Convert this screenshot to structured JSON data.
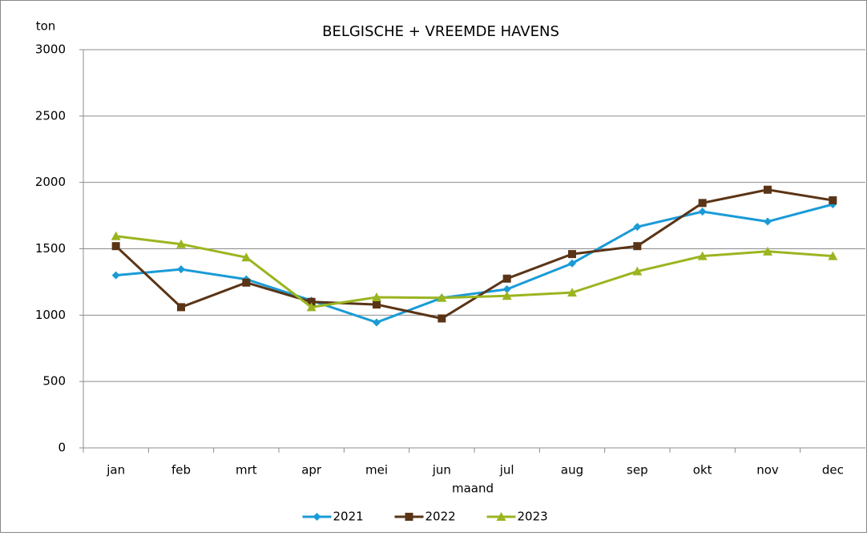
{
  "chart_data": {
    "type": "line",
    "title": "BELGISCHE + VREEMDE HAVENS",
    "ylabel": "ton",
    "xlabel": "maand",
    "categories": [
      "jan",
      "feb",
      "mrt",
      "apr",
      "mei",
      "jun",
      "jul",
      "aug",
      "sep",
      "okt",
      "nov",
      "dec"
    ],
    "series": [
      {
        "name": "2021",
        "color": "#1a9bd7",
        "marker": "diamond",
        "values": [
          1300,
          1345,
          1270,
          1110,
          945,
          1130,
          1195,
          1390,
          1665,
          1780,
          1705,
          1835
        ]
      },
      {
        "name": "2022",
        "color": "#5a3416",
        "marker": "square",
        "values": [
          1520,
          1060,
          1245,
          1100,
          1080,
          975,
          1275,
          1460,
          1520,
          1845,
          1945,
          1865
        ]
      },
      {
        "name": "2023",
        "color": "#9ab520",
        "marker": "triangle",
        "values": [
          1595,
          1535,
          1435,
          1060,
          1135,
          1130,
          1145,
          1170,
          1330,
          1445,
          1480,
          1445
        ]
      }
    ],
    "ylim": [
      0,
      3000
    ],
    "yticks": [
      0,
      500,
      1000,
      1500,
      2000,
      2500,
      3000
    ],
    "grid": true,
    "legend": "bottom"
  }
}
